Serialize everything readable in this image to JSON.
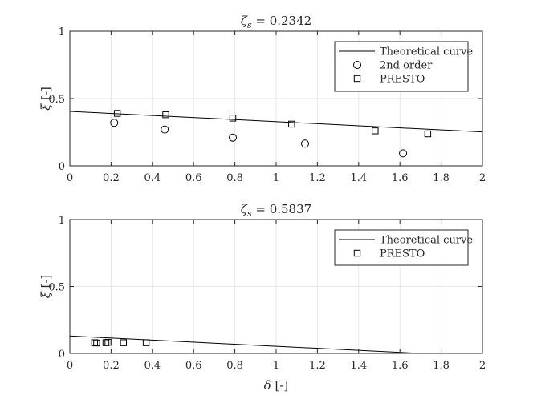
{
  "chart_data": [
    {
      "type": "scatter",
      "title": "ζs = 0.2342",
      "title_main": "ζ",
      "title_sub": "s",
      "title_value": " = 0.2342",
      "xlabel": "",
      "ylabel_symbol": "ξ",
      "ylabel_unit": " [-]",
      "xlim": [
        0,
        2
      ],
      "ylim": [
        0,
        1
      ],
      "xticks": [
        "0",
        "0.2",
        "0.4",
        "0.6",
        "0.8",
        "1",
        "1.2",
        "1.4",
        "1.6",
        "1.8",
        "2"
      ],
      "yticks": [
        "0",
        "0.5",
        "1"
      ],
      "grid": true,
      "legend_position": "top-right",
      "series": [
        {
          "name": "Theoretical curve",
          "kind": "line",
          "x": [
            0,
            2
          ],
          "y": [
            0.405,
            0.252
          ]
        },
        {
          "name": "2nd order",
          "kind": "circle",
          "x": [
            0.215,
            0.46,
            0.79,
            1.14,
            1.615
          ],
          "y": [
            0.32,
            0.27,
            0.21,
            0.165,
            0.093
          ]
        },
        {
          "name": "PRESTO",
          "kind": "square",
          "x": [
            0.23,
            0.465,
            0.79,
            1.075,
            1.48,
            1.735
          ],
          "y": [
            0.39,
            0.38,
            0.355,
            0.31,
            0.26,
            0.238
          ]
        }
      ]
    },
    {
      "type": "scatter",
      "title": "ζs = 0.5837",
      "title_main": "ζ",
      "title_sub": "s",
      "title_value": " = 0.5837",
      "xlabel": "δ [-]",
      "xlabel_symbol": "δ",
      "xlabel_unit": " [-]",
      "ylabel_symbol": "ξ",
      "ylabel_unit": " [-]",
      "xlim": [
        0,
        2
      ],
      "ylim": [
        0,
        1
      ],
      "xticks": [
        "0",
        "0.2",
        "0.4",
        "0.6",
        "0.8",
        "1",
        "1.2",
        "1.4",
        "1.6",
        "1.8",
        "2"
      ],
      "yticks": [
        "0",
        "0.5",
        "1"
      ],
      "grid": true,
      "legend_position": "top-right",
      "series": [
        {
          "name": "Theoretical curve",
          "kind": "line",
          "x": [
            0,
            1.7
          ],
          "y": [
            0.13,
            0.0
          ]
        },
        {
          "name": "PRESTO",
          "kind": "square",
          "x": [
            0.12,
            0.13,
            0.175,
            0.185,
            0.26,
            0.37
          ],
          "y": [
            0.08,
            0.078,
            0.08,
            0.083,
            0.08,
            0.08
          ]
        }
      ]
    }
  ]
}
